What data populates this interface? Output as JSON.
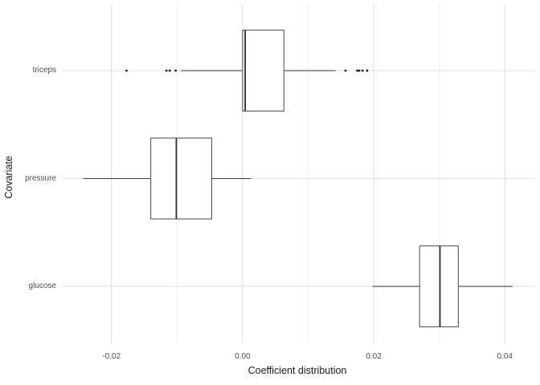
{
  "chart_data": {
    "type": "boxplot",
    "orientation": "horizontal",
    "title": "",
    "xlabel": "Coefficient distribution",
    "ylabel": "Covariate",
    "categories": [
      "triceps",
      "pressure",
      "glucose"
    ],
    "x_ticks": [
      -0.02,
      0.0,
      0.02,
      0.04
    ],
    "x_tick_labels": [
      "-0.02",
      "0.00",
      "0.02",
      "0.04"
    ],
    "x_minor_ticks": [
      -0.01,
      0.01,
      0.03
    ],
    "xlim": [
      -0.0278,
      0.0445
    ],
    "ylim": [
      0.465,
      3.61
    ],
    "box_width_units": 0.75,
    "grid": "vertical major+minor, horizontal major at category rows, no axis lines, no ticks (theme_minimal)",
    "legend": "none",
    "series": [
      {
        "name": "triceps",
        "position": 3,
        "whisker_low": -0.0094,
        "q1": 0.0,
        "median": 0.0004,
        "q3": 0.0063,
        "whisker_high": 0.0142,
        "outliers": [
          -0.0177,
          -0.0116,
          -0.0111,
          -0.0102,
          0.0157,
          0.0175,
          0.0178,
          0.0183,
          0.019
        ]
      },
      {
        "name": "pressure",
        "position": 2,
        "whisker_low": -0.0243,
        "q1": -0.014,
        "median": -0.0101,
        "q3": -0.0047,
        "whisker_high": 0.0013,
        "outliers": []
      },
      {
        "name": "glucose",
        "position": 1,
        "whisker_low": 0.0198,
        "q1": 0.027,
        "median": 0.0301,
        "q3": 0.0329,
        "whisker_high": 0.0412,
        "outliers": []
      }
    ],
    "colors": {
      "background": "#ffffff",
      "grid_major": "#e3e3e3",
      "grid_minor": "#f0f0f0",
      "box_stroke": "#595959",
      "box_fill": "#ffffff",
      "median": "#2b2b2b",
      "whisker": "#4a4a4a",
      "outlier": "#1f1f1f",
      "tick_label": "#4d4d4d",
      "axis_title": "#1a1a1a"
    }
  }
}
